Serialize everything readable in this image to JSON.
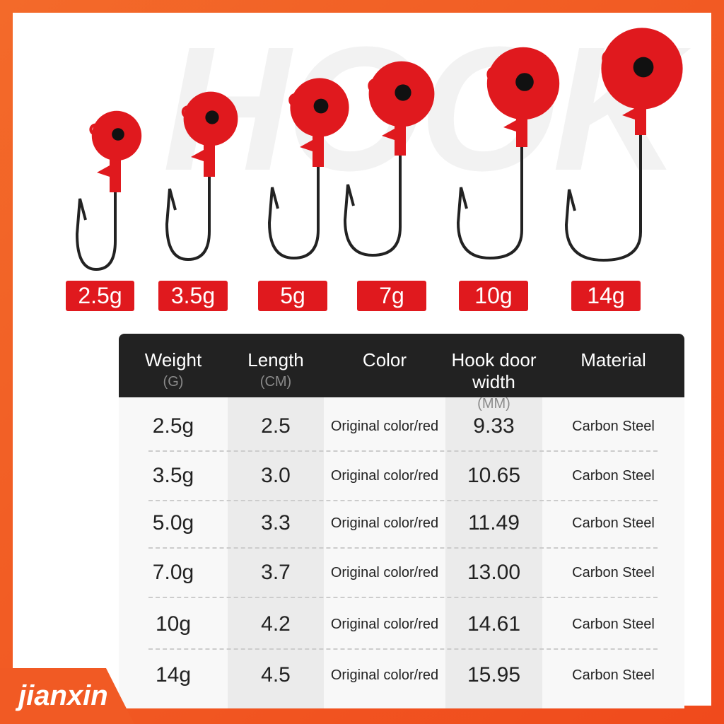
{
  "watermark": "HOOK",
  "weights": [
    "2.5g",
    "3.5g",
    "5g",
    "7g",
    "10g",
    "14g"
  ],
  "colors": {
    "frame": "#f04a1c",
    "head": "#e0191e",
    "tag": "#e0191e",
    "header": "#222222"
  },
  "table": {
    "headers": [
      {
        "label": "Weight",
        "unit": "(G)"
      },
      {
        "label": "Length",
        "unit": "(CM)"
      },
      {
        "label": "Color",
        "unit": ""
      },
      {
        "label": "Hook door width",
        "unit": "(MM)"
      },
      {
        "label": "Material",
        "unit": ""
      }
    ],
    "rows": [
      [
        "2.5g",
        "2.5",
        "Original color/red",
        "9.33",
        "Carbon Steel"
      ],
      [
        "3.5g",
        "3.0",
        "Original color/red",
        "10.65",
        "Carbon Steel"
      ],
      [
        "5.0g",
        "3.3",
        "Original color/red",
        "11.49",
        "Carbon Steel"
      ],
      [
        "7.0g",
        "3.7",
        "Original color/red",
        "13.00",
        "Carbon Steel"
      ],
      [
        "10g",
        "4.2",
        "Original color/red",
        "14.61",
        "Carbon Steel"
      ],
      [
        "14g",
        "4.5",
        "Original color/red",
        "15.95",
        "Carbon Steel"
      ]
    ]
  },
  "brand": "jianxin"
}
